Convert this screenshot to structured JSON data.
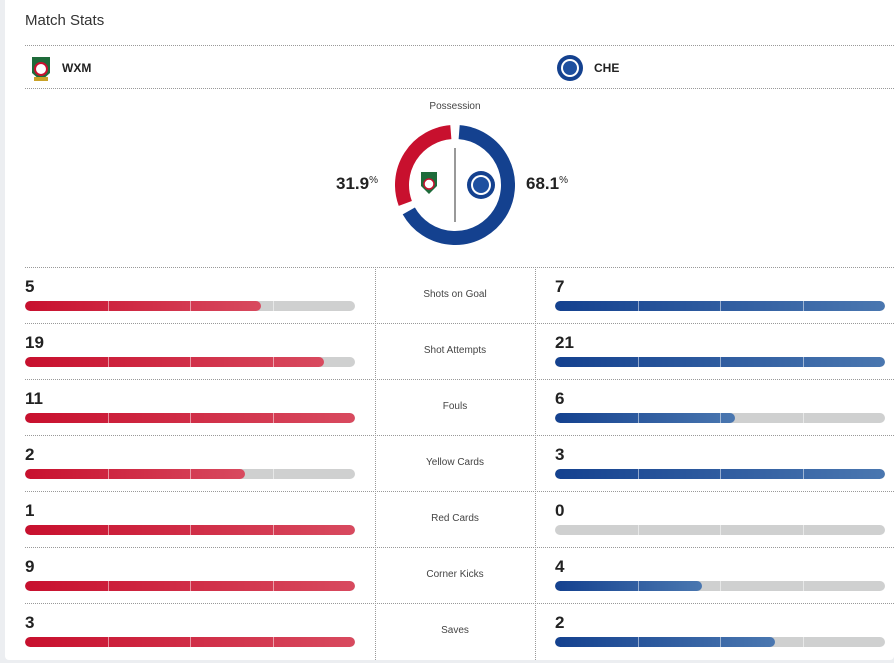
{
  "title": "Match Stats",
  "home": {
    "abbr": "WXM",
    "color": "#c8102e"
  },
  "away": {
    "abbr": "CHE",
    "color": "#14418f"
  },
  "possession": {
    "label": "Possession",
    "home": 31.9,
    "away": 68.1,
    "home_text": "31.9",
    "away_text": "68.1",
    "unit": "%"
  },
  "stats": [
    {
      "label": "Shots on Goal",
      "home": "5",
      "away": "7",
      "home_frac": 0.714,
      "away_frac": 1
    },
    {
      "label": "Shot Attempts",
      "home": "19",
      "away": "21",
      "home_frac": 0.905,
      "away_frac": 1
    },
    {
      "label": "Fouls",
      "home": "11",
      "away": "6",
      "home_frac": 1,
      "away_frac": 0.545
    },
    {
      "label": "Yellow Cards",
      "home": "2",
      "away": "3",
      "home_frac": 0.667,
      "away_frac": 1
    },
    {
      "label": "Red Cards",
      "home": "1",
      "away": "0",
      "home_frac": 1,
      "away_frac": 0
    },
    {
      "label": "Corner Kicks",
      "home": "9",
      "away": "4",
      "home_frac": 1,
      "away_frac": 0.444
    },
    {
      "label": "Saves",
      "home": "3",
      "away": "2",
      "home_frac": 1,
      "away_frac": 0.667
    }
  ]
}
